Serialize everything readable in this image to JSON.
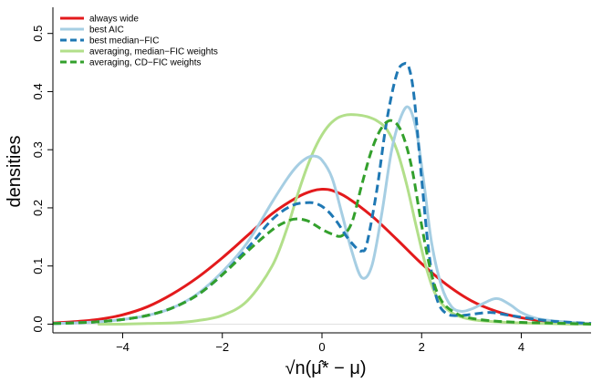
{
  "chart_data": {
    "type": "line",
    "title": "",
    "xlabel": "√n(μ̂* − μ)",
    "ylabel": "densities",
    "xlim": [
      -5.4,
      5.4
    ],
    "ylim": [
      -0.015,
      0.545
    ],
    "xticks": [
      -4,
      -2,
      0,
      2,
      4
    ],
    "xtick_labels": [
      "−4",
      "−2",
      "0",
      "2",
      "4"
    ],
    "yticks": [
      0.0,
      0.1,
      0.2,
      0.3,
      0.4,
      0.5
    ],
    "ytick_labels": [
      "0.0",
      "0.1",
      "0.2",
      "0.3",
      "0.4",
      "0.5"
    ],
    "grid": false,
    "legend_position": "top-left",
    "series": [
      {
        "name": "always wide",
        "color": "#e31a1c",
        "dash": "solid",
        "x": [
          -5.4,
          -5.0,
          -4.5,
          -4.0,
          -3.5,
          -3.0,
          -2.5,
          -2.0,
          -1.5,
          -1.0,
          -0.5,
          -0.2,
          0.0,
          0.2,
          0.5,
          1.0,
          1.5,
          2.0,
          2.5,
          3.0,
          3.5,
          4.0,
          4.5,
          5.0,
          5.4
        ],
        "y": [
          0.002,
          0.004,
          0.008,
          0.016,
          0.03,
          0.052,
          0.08,
          0.114,
          0.152,
          0.19,
          0.218,
          0.229,
          0.232,
          0.23,
          0.218,
          0.186,
          0.146,
          0.104,
          0.068,
          0.04,
          0.022,
          0.011,
          0.005,
          0.002,
          0.001
        ]
      },
      {
        "name": "best AIC",
        "color": "#a6cee3",
        "dash": "solid",
        "x": [
          -5.4,
          -5.0,
          -4.5,
          -4.0,
          -3.5,
          -3.0,
          -2.5,
          -2.0,
          -1.5,
          -1.0,
          -0.7,
          -0.5,
          -0.3,
          -0.15,
          0.0,
          0.2,
          0.4,
          0.6,
          0.8,
          1.0,
          1.2,
          1.4,
          1.6,
          1.75,
          1.9,
          2.05,
          2.2,
          2.4,
          2.6,
          2.8,
          3.0,
          3.2,
          3.4,
          3.5,
          3.6,
          3.8,
          4.0,
          4.3,
          4.6,
          5.0,
          5.4
        ],
        "y": [
          0.001,
          0.002,
          0.004,
          0.008,
          0.015,
          0.028,
          0.052,
          0.09,
          0.14,
          0.21,
          0.25,
          0.272,
          0.286,
          0.289,
          0.282,
          0.252,
          0.19,
          0.125,
          0.08,
          0.1,
          0.19,
          0.3,
          0.36,
          0.372,
          0.33,
          0.24,
          0.14,
          0.065,
          0.03,
          0.022,
          0.026,
          0.034,
          0.042,
          0.044,
          0.042,
          0.032,
          0.02,
          0.01,
          0.006,
          0.003,
          0.001
        ]
      },
      {
        "name": "best median−FIC",
        "color": "#1f78b4",
        "dash": "dashed",
        "x": [
          -5.4,
          -5.0,
          -4.5,
          -4.0,
          -3.5,
          -3.0,
          -2.5,
          -2.0,
          -1.5,
          -1.0,
          -0.6,
          -0.3,
          -0.1,
          0.1,
          0.3,
          0.5,
          0.7,
          0.8,
          0.9,
          1.1,
          1.3,
          1.5,
          1.65,
          1.75,
          1.85,
          2.0,
          2.15,
          2.3,
          2.5,
          2.8,
          3.1,
          3.4,
          3.7,
          4.0,
          4.5,
          5.0,
          5.4
        ],
        "y": [
          0.001,
          0.002,
          0.004,
          0.008,
          0.015,
          0.028,
          0.05,
          0.085,
          0.13,
          0.18,
          0.204,
          0.209,
          0.207,
          0.196,
          0.176,
          0.15,
          0.13,
          0.126,
          0.138,
          0.23,
          0.35,
          0.43,
          0.448,
          0.44,
          0.39,
          0.25,
          0.12,
          0.045,
          0.018,
          0.015,
          0.018,
          0.02,
          0.016,
          0.012,
          0.006,
          0.003,
          0.001
        ]
      },
      {
        "name": "averaging, median−FIC weights",
        "color": "#b2df8a",
        "dash": "solid",
        "x": [
          -4.5,
          -4.0,
          -3.5,
          -3.0,
          -2.5,
          -2.0,
          -1.5,
          -1.0,
          -0.7,
          -0.5,
          -0.3,
          -0.1,
          0.1,
          0.3,
          0.5,
          0.7,
          0.9,
          1.1,
          1.3,
          1.5,
          1.7,
          1.9,
          2.1,
          2.3,
          2.6,
          3.0,
          3.5,
          4.0,
          4.5,
          5.0,
          5.4
        ],
        "y": [
          0.0,
          0.0,
          0.001,
          0.002,
          0.006,
          0.015,
          0.04,
          0.1,
          0.165,
          0.22,
          0.27,
          0.31,
          0.338,
          0.354,
          0.36,
          0.36,
          0.357,
          0.35,
          0.335,
          0.3,
          0.24,
          0.165,
          0.095,
          0.048,
          0.02,
          0.008,
          0.004,
          0.002,
          0.001,
          0.0,
          0.0
        ]
      },
      {
        "name": "averaging, CD−FIC weights",
        "color": "#33a02c",
        "dash": "dashed",
        "x": [
          -5.4,
          -5.0,
          -4.5,
          -4.0,
          -3.5,
          -3.0,
          -2.5,
          -2.0,
          -1.5,
          -1.0,
          -0.7,
          -0.5,
          -0.3,
          -0.15,
          0.0,
          0.2,
          0.4,
          0.6,
          0.8,
          1.0,
          1.2,
          1.4,
          1.6,
          1.8,
          2.0,
          2.2,
          2.4,
          2.7,
          3.0,
          3.5,
          4.0,
          4.5,
          5.0,
          5.4
        ],
        "y": [
          0.001,
          0.002,
          0.004,
          0.008,
          0.015,
          0.028,
          0.05,
          0.085,
          0.125,
          0.162,
          0.177,
          0.181,
          0.178,
          0.171,
          0.163,
          0.155,
          0.152,
          0.175,
          0.24,
          0.3,
          0.338,
          0.35,
          0.33,
          0.27,
          0.17,
          0.085,
          0.04,
          0.018,
          0.01,
          0.005,
          0.003,
          0.002,
          0.001,
          0.0
        ]
      }
    ]
  }
}
